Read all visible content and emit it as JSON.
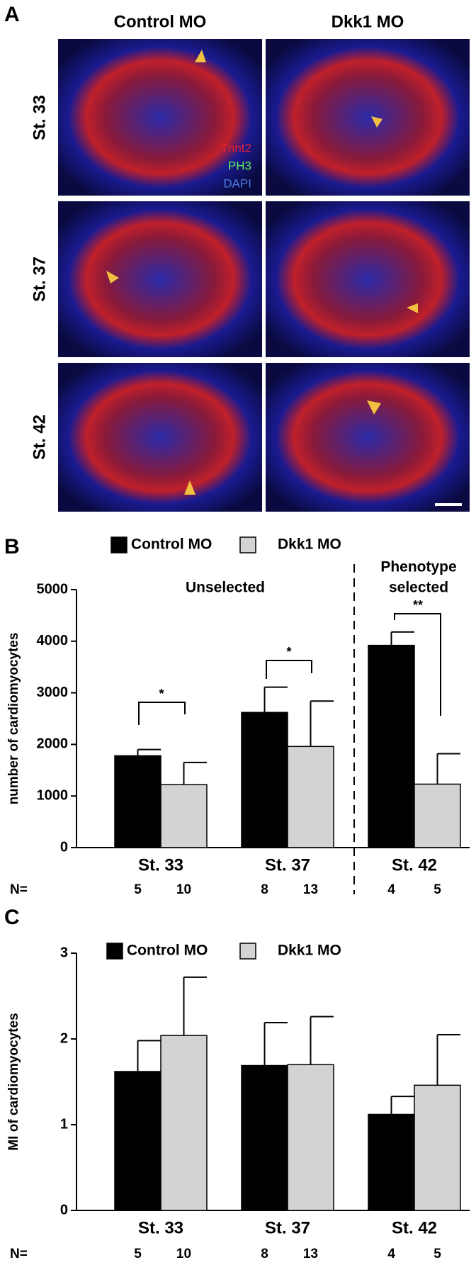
{
  "panel_a": {
    "label": "A",
    "columns": [
      "Control MO",
      "Dkk1 MO"
    ],
    "rows": [
      "St. 33",
      "St. 37",
      "St. 42"
    ],
    "stains": [
      {
        "name": "Tnnt2",
        "color": "#e8202a"
      },
      {
        "name": "PH3",
        "color": "#5ef05e"
      },
      {
        "name": "DAPI",
        "color": "#4a7ae0"
      }
    ]
  },
  "chart_data": [
    {
      "type": "bar",
      "panel_label": "B",
      "ylabel": "number of cardiomyocytes",
      "categories": [
        "St. 33",
        "St. 37",
        "St. 42"
      ],
      "series": [
        {
          "name": "Control MO",
          "color": "#000000",
          "values": [
            1780,
            2620,
            3920
          ],
          "errors": [
            120,
            490,
            260
          ]
        },
        {
          "name": "Dkk1 MO",
          "color": "#d3d3d3",
          "values": [
            1220,
            1960,
            1230
          ],
          "errors": [
            430,
            880,
            590
          ]
        }
      ],
      "n_label": "N=",
      "n": [
        [
          5,
          10
        ],
        [
          8,
          13
        ],
        [
          4,
          5
        ]
      ],
      "annotations": [
        "Unselected",
        "Phenotype",
        "selected"
      ],
      "significance": [
        "*",
        "*",
        "**"
      ],
      "ylim": [
        0,
        5000
      ],
      "yticks": [
        0,
        1000,
        2000,
        3000,
        4000,
        5000
      ]
    },
    {
      "type": "bar",
      "panel_label": "C",
      "ylabel": "MI of cardiomyocytes",
      "categories": [
        "St. 33",
        "St. 37",
        "St. 42"
      ],
      "series": [
        {
          "name": "Control MO",
          "color": "#000000",
          "values": [
            1.62,
            1.69,
            1.12
          ],
          "errors": [
            0.36,
            0.5,
            0.21
          ]
        },
        {
          "name": "Dkk1 MO",
          "color": "#d3d3d3",
          "values": [
            2.04,
            1.7,
            1.46
          ],
          "errors": [
            0.68,
            0.56,
            0.59
          ]
        }
      ],
      "n_label": "N=",
      "n": [
        [
          5,
          10
        ],
        [
          8,
          13
        ],
        [
          4,
          5
        ]
      ],
      "ylim": [
        0,
        3
      ],
      "yticks": [
        0,
        1,
        2,
        3
      ]
    }
  ]
}
